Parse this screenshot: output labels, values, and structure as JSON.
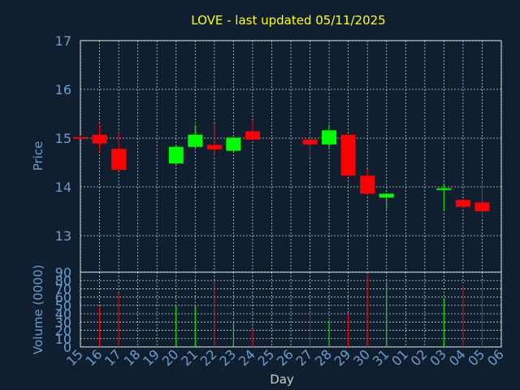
{
  "chart_data": [
    {
      "type": "candlestick",
      "title": "LOVE - last updated 05/11/2025",
      "ylabel": "Price",
      "ylim": [
        12.25,
        17
      ],
      "yticks": [
        13,
        14,
        15,
        16,
        17
      ],
      "grid": true,
      "up_color": "#00ff00",
      "down_color": "#ff0000",
      "x_categories": [
        "15",
        "16",
        "17",
        "18",
        "19",
        "20",
        "21",
        "22",
        "23",
        "24",
        "25",
        "26",
        "27",
        "28",
        "29",
        "30",
        "31",
        "01",
        "02",
        "03",
        "04",
        "05",
        "06"
      ],
      "candles": [
        {
          "day": "15",
          "open": 15.02,
          "high": 15.05,
          "low": 14.99,
          "close": 15.0
        },
        {
          "day": "16",
          "open": 15.07,
          "high": 15.28,
          "low": 14.72,
          "close": 14.89
        },
        {
          "day": "17",
          "open": 14.78,
          "high": 15.12,
          "low": 14.33,
          "close": 14.35
        },
        {
          "day": "20",
          "open": 14.48,
          "high": 14.85,
          "low": 14.47,
          "close": 14.82
        },
        {
          "day": "21",
          "open": 14.82,
          "high": 15.27,
          "low": 14.8,
          "close": 15.07
        },
        {
          "day": "22",
          "open": 14.86,
          "high": 15.3,
          "low": 14.64,
          "close": 14.77
        },
        {
          "day": "23",
          "open": 14.74,
          "high": 15.02,
          "low": 14.73,
          "close": 15.01
        },
        {
          "day": "24",
          "open": 15.14,
          "high": 15.37,
          "low": 14.96,
          "close": 14.97
        },
        {
          "day": "27",
          "open": 14.97,
          "high": 15.09,
          "low": 14.61,
          "close": 14.87
        },
        {
          "day": "28",
          "open": 14.87,
          "high": 15.28,
          "low": 14.79,
          "close": 15.16
        },
        {
          "day": "29",
          "open": 15.07,
          "high": 15.07,
          "low": 14.21,
          "close": 14.23
        },
        {
          "day": "30",
          "open": 14.23,
          "high": 14.37,
          "low": 13.84,
          "close": 13.86
        },
        {
          "day": "31",
          "open": 13.78,
          "high": 13.87,
          "low": 13.54,
          "close": 13.86
        },
        {
          "day": "03",
          "open": 13.95,
          "high": 14.05,
          "low": 13.51,
          "close": 13.97
        },
        {
          "day": "04",
          "open": 13.73,
          "high": 13.74,
          "low": 13.57,
          "close": 13.59
        },
        {
          "day": "05",
          "open": 13.68,
          "high": 14.12,
          "low": 13.37,
          "close": 13.5
        }
      ]
    },
    {
      "type": "bar",
      "ylabel": "Volume (0000)",
      "xlabel": "Day",
      "ylim": [
        0,
        90
      ],
      "yticks": [
        0,
        10,
        20,
        30,
        40,
        50,
        60,
        70,
        80,
        90
      ],
      "grid": true,
      "x_categories": [
        "15",
        "16",
        "17",
        "18",
        "19",
        "20",
        "21",
        "22",
        "23",
        "24",
        "25",
        "26",
        "27",
        "28",
        "29",
        "30",
        "31",
        "01",
        "02",
        "03",
        "04",
        "05",
        "06"
      ],
      "bars": [
        {
          "day": "16",
          "value": 48,
          "color": "#ff0000"
        },
        {
          "day": "17",
          "value": 64,
          "color": "#ff0000"
        },
        {
          "day": "20",
          "value": 49,
          "color": "#00ff00"
        },
        {
          "day": "21",
          "value": 49,
          "color": "#00ff00"
        },
        {
          "day": "22",
          "value": 77,
          "color": "#ff0000"
        },
        {
          "day": "23",
          "value": 31,
          "color": "#00ff00"
        },
        {
          "day": "24",
          "value": 21,
          "color": "#ff0000"
        },
        {
          "day": "27",
          "value": 40,
          "color": "#ff0000"
        },
        {
          "day": "28",
          "value": 32,
          "color": "#00ff00"
        },
        {
          "day": "29",
          "value": 39,
          "color": "#ff0000"
        },
        {
          "day": "30",
          "value": 86,
          "color": "#ff0000"
        },
        {
          "day": "31",
          "value": 77,
          "color": "#00ff00"
        },
        {
          "day": "03",
          "value": 59,
          "color": "#00ff00"
        },
        {
          "day": "04",
          "value": 74,
          "color": "#ff0000"
        },
        {
          "day": "05",
          "value": 77,
          "color": "#ff0000"
        }
      ]
    }
  ]
}
